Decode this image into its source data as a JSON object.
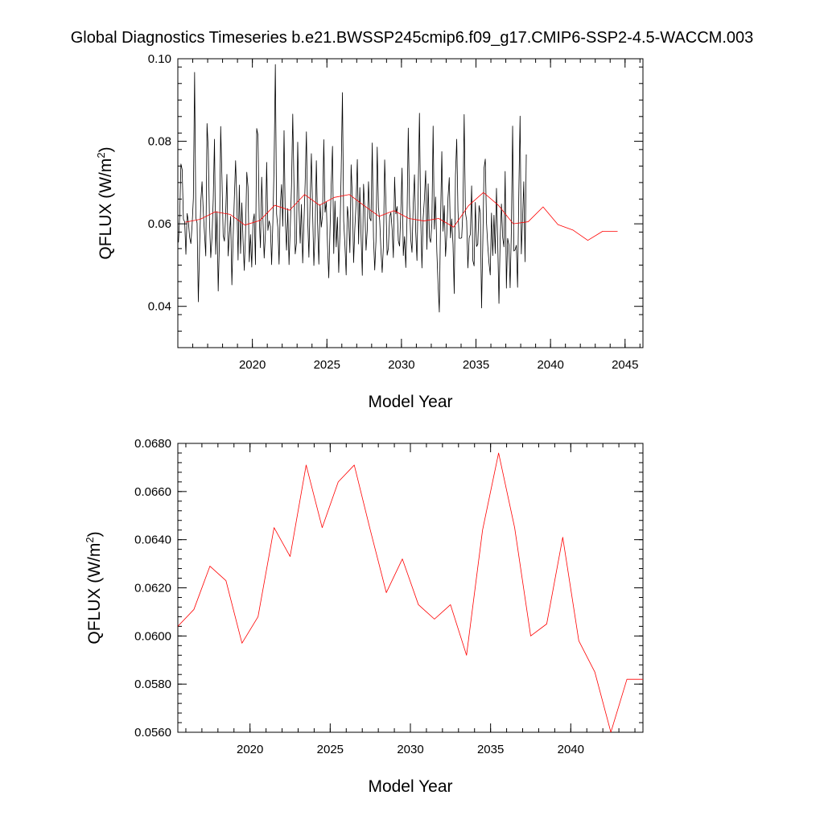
{
  "title": "Global Diagnostics Timeseries b.e21.BWSSP245cmip6.f09_g17.CMIP6-SSP2-4.5-WACCM.003",
  "chart_data": [
    {
      "type": "line",
      "name": "monthly-and-annual",
      "xlabel": "Model Year",
      "ylabel_base": "QFLUX (W/m",
      "ylabel_sup": "2",
      "ylabel_close": ")",
      "xlim": [
        2015.0,
        2046.2
      ],
      "ylim": [
        0.03,
        0.1
      ],
      "xticks": [
        2020,
        2025,
        2030,
        2035,
        2040,
        2045
      ],
      "xtick_labels": [
        "2020",
        "2025",
        "2030",
        "2035",
        "2040",
        "2045"
      ],
      "yticks": [
        0.04,
        0.06,
        0.08,
        0.1
      ],
      "ytick_labels": [
        "0.04",
        "0.06",
        "0.08",
        "0.10"
      ],
      "series": [
        {
          "name": "monthly",
          "color": "#000000",
          "x_start": 2015.0417,
          "x_step": 0.08333,
          "values": [
            0.0555,
            0.062,
            0.0745,
            0.0731,
            0.0611,
            0.0605,
            0.0526,
            0.0625,
            0.0605,
            0.0567,
            0.0552,
            0.0598,
            0.0662,
            0.0967,
            0.0615,
            0.0602,
            0.0411,
            0.0542,
            0.0655,
            0.0702,
            0.0628,
            0.0575,
            0.0522,
            0.0843,
            0.078,
            0.0605,
            0.0518,
            0.0567,
            0.066,
            0.0805,
            0.0526,
            0.063,
            0.0437,
            0.056,
            0.0836,
            0.0712,
            0.0572,
            0.0558,
            0.0623,
            0.072,
            0.0522,
            0.0575,
            0.0618,
            0.0452,
            0.0565,
            0.0664,
            0.0753,
            0.0655,
            0.0512,
            0.0694,
            0.0528,
            0.0651,
            0.0559,
            0.0487,
            0.0578,
            0.0725,
            0.0689,
            0.0508,
            0.0574,
            0.0495,
            0.0604,
            0.0624,
            0.0501,
            0.0831,
            0.0815,
            0.0615,
            0.0542,
            0.0713,
            0.0612,
            0.0517,
            0.0576,
            0.0749,
            0.0584,
            0.0607,
            0.0594,
            0.0501,
            0.0604,
            0.0745,
            0.0986,
            0.0624,
            0.0591,
            0.0502,
            0.0646,
            0.0695,
            0.0594,
            0.0826,
            0.0611,
            0.0536,
            0.0637,
            0.0501,
            0.059,
            0.0691,
            0.0866,
            0.0694,
            0.0527,
            0.0554,
            0.0798,
            0.064,
            0.0553,
            0.0647,
            0.0505,
            0.0601,
            0.0699,
            0.0823,
            0.0614,
            0.0519,
            0.0656,
            0.077,
            0.0628,
            0.0499,
            0.0581,
            0.0753,
            0.0602,
            0.0502,
            0.0647,
            0.0592,
            0.0621,
            0.0804,
            0.0628,
            0.0653,
            0.0548,
            0.0469,
            0.0585,
            0.0697,
            0.0788,
            0.0528,
            0.0655,
            0.0544,
            0.0616,
            0.0482,
            0.0577,
            0.0728,
            0.0918,
            0.0607,
            0.0549,
            0.0476,
            0.0642,
            0.0611,
            0.053,
            0.0743,
            0.0662,
            0.0506,
            0.059,
            0.0651,
            0.0756,
            0.0551,
            0.0688,
            0.0571,
            0.0475,
            0.0696,
            0.0637,
            0.0536,
            0.0586,
            0.0702,
            0.0614,
            0.0607,
            0.0796,
            0.0566,
            0.0488,
            0.0558,
            0.0786,
            0.0639,
            0.0608,
            0.0536,
            0.0482,
            0.0547,
            0.0755,
            0.0652,
            0.0524,
            0.0541,
            0.0618,
            0.0627,
            0.0587,
            0.0518,
            0.0713,
            0.0624,
            0.0642,
            0.0559,
            0.0546,
            0.0629,
            0.0735,
            0.0523,
            0.0569,
            0.0494,
            0.0615,
            0.0832,
            0.0646,
            0.0563,
            0.0531,
            0.0648,
            0.0719,
            0.058,
            0.0511,
            0.0682,
            0.0868,
            0.0617,
            0.0493,
            0.0614,
            0.0661,
            0.0729,
            0.0538,
            0.0697,
            0.0567,
            0.0555,
            0.0601,
            0.0837,
            0.0587,
            0.0665,
            0.0532,
            0.0452,
            0.0386,
            0.0612,
            0.0775,
            0.0582,
            0.0644,
            0.0521,
            0.0574,
            0.0664,
            0.0712,
            0.0566,
            0.0612,
            0.0551,
            0.0431,
            0.0718,
            0.0805,
            0.0633,
            0.0565,
            0.0565,
            0.0566,
            0.0633,
            0.0865,
            0.0627,
            0.0608,
            0.0493,
            0.0566,
            0.0575,
            0.0692,
            0.0511,
            0.0498,
            0.0652,
            0.0545,
            0.0551,
            0.0644,
            0.0627,
            0.0396,
            0.0554,
            0.0735,
            0.0757,
            0.0602,
            0.0547,
            0.0505,
            0.0476,
            0.0626,
            0.0523,
            0.0621,
            0.0528,
            0.0686,
            0.0555,
            0.0407,
            0.0565,
            0.0648,
            0.0567,
            0.0544,
            0.0727,
            0.0444,
            0.0565,
            0.0549,
            0.0445,
            0.0587,
            0.0837,
            0.0534,
            0.0537,
            0.0548,
            0.0446,
            0.0678,
            0.0861,
            0.0527,
            0.0611,
            0.0702,
            0.0508,
            0.0768
          ]
        },
        {
          "name": "annual-mean",
          "color": "#ff0000",
          "x": [
            2015.5,
            2016.5,
            2017.5,
            2018.5,
            2019.5,
            2020.5,
            2021.5,
            2022.5,
            2023.5,
            2024.5,
            2025.5,
            2026.5,
            2027.5,
            2028.5,
            2029.5,
            2030.5,
            2031.5,
            2032.5,
            2033.5,
            2034.5,
            2035.5,
            2036.5,
            2037.5,
            2038.5,
            2039.5,
            2040.5,
            2041.5,
            2042.5,
            2043.5,
            2044.5
          ],
          "values": [
            0.0604,
            0.0611,
            0.0629,
            0.0623,
            0.0597,
            0.0608,
            0.0645,
            0.0633,
            0.0671,
            0.0645,
            0.0664,
            0.0671,
            0.0644,
            0.0618,
            0.0632,
            0.0613,
            0.0607,
            0.0613,
            0.0592,
            0.0644,
            0.0676,
            0.0645,
            0.06,
            0.0605,
            0.0641,
            0.0598,
            0.0585,
            0.056,
            0.0582,
            0.0582
          ]
        }
      ]
    },
    {
      "type": "line",
      "name": "annual-mean-zoom",
      "xlabel": "Model Year",
      "ylabel_base": "QFLUX (W/m",
      "ylabel_sup": "2",
      "ylabel_close": ")",
      "xlim": [
        2015.5,
        2044.5
      ],
      "ylim": [
        0.056,
        0.068
      ],
      "xticks": [
        2020,
        2025,
        2030,
        2035,
        2040
      ],
      "xtick_labels": [
        "2020",
        "2025",
        "2030",
        "2035",
        "2040"
      ],
      "yticks": [
        0.056,
        0.058,
        0.06,
        0.062,
        0.064,
        0.066,
        0.068
      ],
      "ytick_labels": [
        "0.0560",
        "0.0580",
        "0.0600",
        "0.0620",
        "0.0640",
        "0.0660",
        "0.0680"
      ],
      "series": [
        {
          "name": "annual-mean",
          "color": "#ff0000",
          "x": [
            2015.5,
            2016.5,
            2017.5,
            2018.5,
            2019.5,
            2020.5,
            2021.5,
            2022.5,
            2023.5,
            2024.5,
            2025.5,
            2026.5,
            2027.5,
            2028.5,
            2029.5,
            2030.5,
            2031.5,
            2032.5,
            2033.5,
            2034.5,
            2035.5,
            2036.5,
            2037.5,
            2038.5,
            2039.5,
            2040.5,
            2041.5,
            2042.5,
            2043.5,
            2044.5
          ],
          "values": [
            0.0604,
            0.0611,
            0.0629,
            0.0623,
            0.0597,
            0.0608,
            0.0645,
            0.0633,
            0.0671,
            0.0645,
            0.0664,
            0.0671,
            0.0644,
            0.0618,
            0.0632,
            0.0613,
            0.0607,
            0.0613,
            0.0592,
            0.0644,
            0.0676,
            0.0645,
            0.06,
            0.0605,
            0.0641,
            0.0598,
            0.0585,
            0.056,
            0.0582,
            0.0582
          ]
        }
      ]
    }
  ]
}
